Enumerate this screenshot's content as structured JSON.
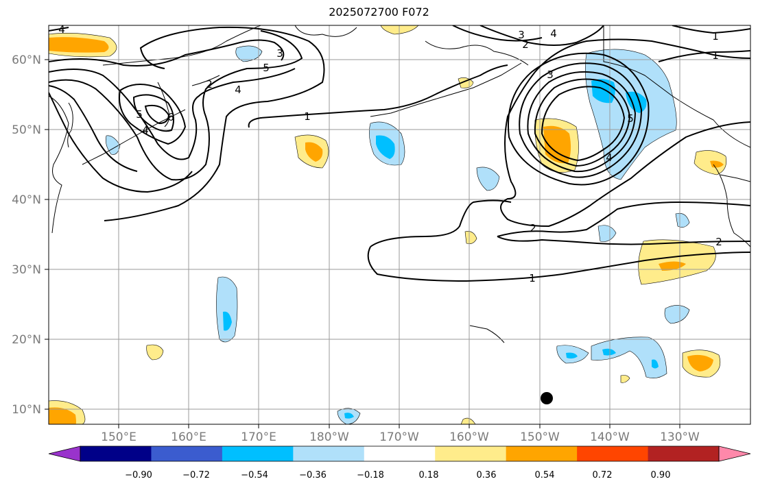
{
  "title": "2025072700 F072",
  "map": {
    "lat_labels": [
      "60°N",
      "50°N",
      "40°N",
      "30°N",
      "20°N",
      "10°N"
    ],
    "lon_labels": [
      "150°E",
      "160°E",
      "170°E",
      "180°W",
      "170°W",
      "160°W",
      "150°W",
      "140°W",
      "130°W"
    ],
    "contour_labels": [
      "4",
      "3",
      "2",
      "1",
      "5",
      "4",
      "5",
      "4",
      "6",
      "1",
      "3",
      "4",
      "3",
      "5",
      "2",
      "4",
      "2",
      "1",
      "2",
      "1"
    ],
    "grid": true,
    "colors": {
      "contour": "#000000",
      "grid": "#9a9a9a",
      "coast": "#000000"
    }
  },
  "colorbar": {
    "labels": [
      "−0.90",
      "−0.72",
      "−0.54",
      "−0.36",
      "−0.18",
      "0.18",
      "0.36",
      "0.54",
      "0.72",
      "0.90"
    ],
    "colors": [
      "#9933cc",
      "#000088",
      "#3b5ccf",
      "#00bfff",
      "#b0e0fa",
      "#ffffff",
      "#ffec8b",
      "#ffa500",
      "#ff4500",
      "#b22222",
      "#ff88aa"
    ]
  }
}
